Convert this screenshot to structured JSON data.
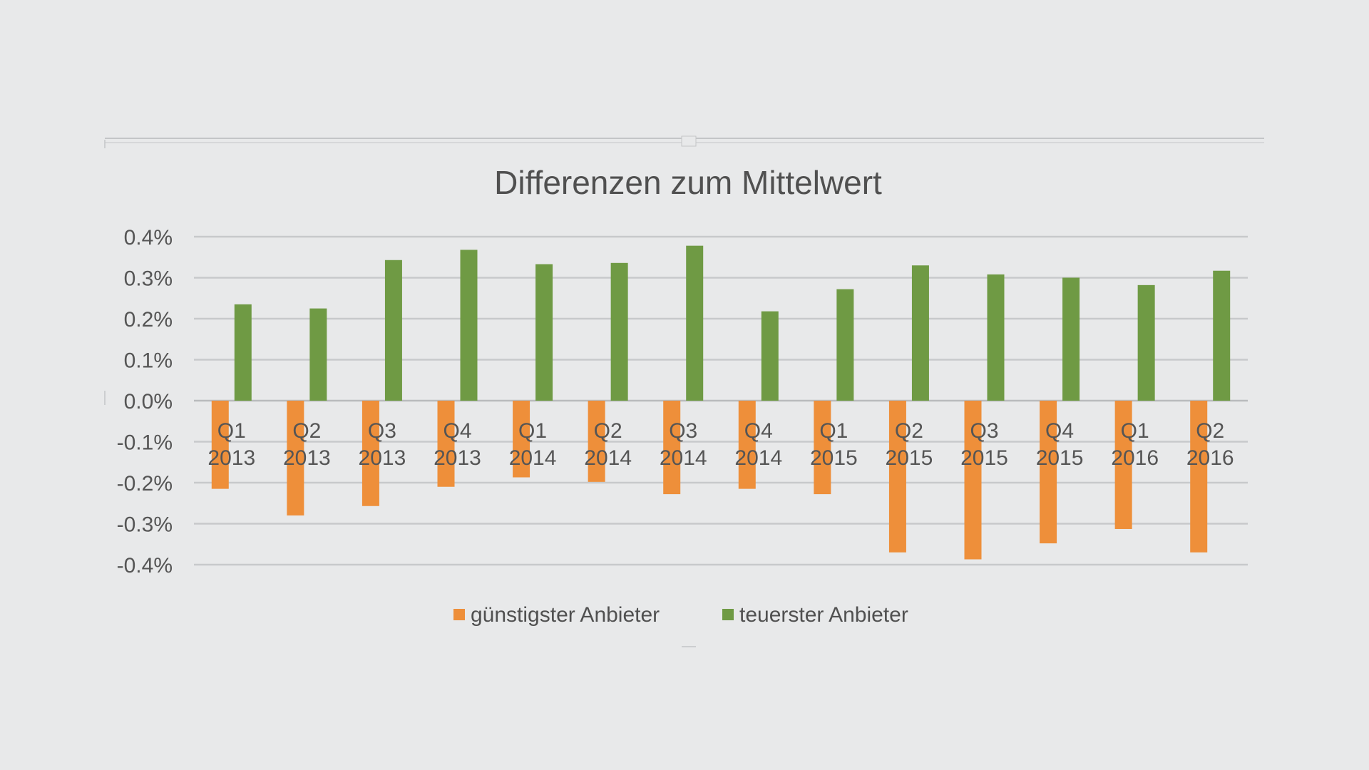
{
  "chart_data": {
    "type": "bar",
    "title": "Differenzen zum Mittelwert",
    "xlabel": "",
    "ylabel": "",
    "ylim": [
      -0.4,
      0.4
    ],
    "yticks": [
      0.4,
      0.3,
      0.2,
      0.1,
      0.0,
      -0.1,
      -0.2,
      -0.3,
      -0.4
    ],
    "ytick_labels": [
      "0.4%",
      "0.3%",
      "0.2%",
      "0.1%",
      "0.0%",
      "-0.1%",
      "-0.2%",
      "-0.3%",
      "-0.4%"
    ],
    "unit": "%",
    "grid": true,
    "legend_position": "bottom",
    "categories": [
      {
        "quarter": "Q1",
        "year": "2013"
      },
      {
        "quarter": "Q2",
        "year": "2013"
      },
      {
        "quarter": "Q3",
        "year": "2013"
      },
      {
        "quarter": "Q4",
        "year": "2013"
      },
      {
        "quarter": "Q1",
        "year": "2014"
      },
      {
        "quarter": "Q2",
        "year": "2014"
      },
      {
        "quarter": "Q3",
        "year": "2014"
      },
      {
        "quarter": "Q4",
        "year": "2014"
      },
      {
        "quarter": "Q1",
        "year": "2015"
      },
      {
        "quarter": "Q2",
        "year": "2015"
      },
      {
        "quarter": "Q3",
        "year": "2015"
      },
      {
        "quarter": "Q4",
        "year": "2015"
      },
      {
        "quarter": "Q1",
        "year": "2016"
      },
      {
        "quarter": "Q2",
        "year": "2016"
      }
    ],
    "series": [
      {
        "name": "günstigster Anbieter",
        "color": "#ee8f3a",
        "values": [
          -0.215,
          -0.28,
          -0.257,
          -0.21,
          -0.187,
          -0.198,
          -0.228,
          -0.215,
          -0.228,
          -0.37,
          -0.387,
          -0.348,
          -0.313,
          -0.37
        ]
      },
      {
        "name": "teuerster Anbieter",
        "color": "#6f9a44",
        "values": [
          0.235,
          0.225,
          0.343,
          0.368,
          0.333,
          0.336,
          0.378,
          0.218,
          0.272,
          0.33,
          0.308,
          0.3,
          0.282,
          0.317
        ]
      }
    ]
  }
}
